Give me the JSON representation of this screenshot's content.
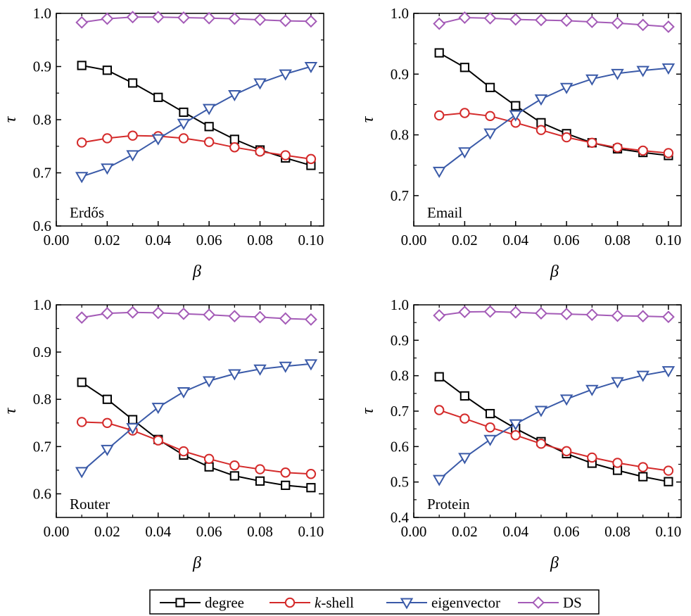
{
  "chart_data": [
    {
      "type": "line",
      "panel_label": "Erdős",
      "xlabel": "β",
      "ylabel": "τ",
      "xlim": [
        0.0,
        0.105
      ],
      "ylim": [
        0.6,
        1.0
      ],
      "xticks": [
        "0.00",
        "0.02",
        "0.04",
        "0.06",
        "0.08",
        "0.10"
      ],
      "yticks": [
        "0.6",
        "0.7",
        "0.8",
        "0.9",
        "1.0"
      ],
      "x": [
        0.01,
        0.02,
        0.03,
        0.04,
        0.05,
        0.06,
        0.07,
        0.08,
        0.09,
        0.1
      ],
      "series": [
        {
          "name": "degree",
          "values": [
            0.902,
            0.893,
            0.869,
            0.842,
            0.814,
            0.787,
            0.763,
            0.743,
            0.728,
            0.714
          ]
        },
        {
          "name": "k-shell",
          "values": [
            0.757,
            0.765,
            0.77,
            0.769,
            0.765,
            0.758,
            0.748,
            0.74,
            0.733,
            0.726
          ]
        },
        {
          "name": "eigenvector",
          "values": [
            0.693,
            0.709,
            0.734,
            0.764,
            0.793,
            0.821,
            0.847,
            0.869,
            0.886,
            0.9
          ]
        },
        {
          "name": "DS",
          "values": [
            0.983,
            0.99,
            0.993,
            0.993,
            0.992,
            0.991,
            0.99,
            0.988,
            0.986,
            0.985
          ]
        }
      ]
    },
    {
      "type": "line",
      "panel_label": "Email",
      "xlabel": "β",
      "ylabel": "τ",
      "xlim": [
        0.0,
        0.105
      ],
      "ylim": [
        0.65,
        1.0
      ],
      "xticks": [
        "0.00",
        "0.02",
        "0.04",
        "0.06",
        "0.08",
        "0.10"
      ],
      "yticks": [
        "0.7",
        "0.8",
        "0.9",
        "1.0"
      ],
      "x": [
        0.01,
        0.02,
        0.03,
        0.04,
        0.05,
        0.06,
        0.07,
        0.08,
        0.09,
        0.1
      ],
      "series": [
        {
          "name": "degree",
          "values": [
            0.935,
            0.911,
            0.878,
            0.848,
            0.82,
            0.802,
            0.787,
            0.777,
            0.771,
            0.766
          ]
        },
        {
          "name": "k-shell",
          "values": [
            0.832,
            0.836,
            0.831,
            0.82,
            0.808,
            0.796,
            0.787,
            0.779,
            0.774,
            0.77
          ]
        },
        {
          "name": "eigenvector",
          "values": [
            0.74,
            0.772,
            0.803,
            0.833,
            0.859,
            0.878,
            0.892,
            0.901,
            0.906,
            0.91
          ]
        },
        {
          "name": "DS",
          "values": [
            0.983,
            0.993,
            0.992,
            0.99,
            0.989,
            0.988,
            0.986,
            0.984,
            0.981,
            0.978
          ]
        }
      ]
    },
    {
      "type": "line",
      "panel_label": "Router",
      "xlabel": "β",
      "ylabel": "τ",
      "xlim": [
        0.0,
        0.105
      ],
      "ylim": [
        0.55,
        1.0
      ],
      "xticks": [
        "0.00",
        "0.02",
        "0.04",
        "0.06",
        "0.08",
        "0.10"
      ],
      "yticks": [
        "0.6",
        "0.7",
        "0.8",
        "0.9",
        "1.0"
      ],
      "x": [
        0.01,
        0.02,
        0.03,
        0.04,
        0.05,
        0.06,
        0.07,
        0.08,
        0.09,
        0.1
      ],
      "series": [
        {
          "name": "degree",
          "values": [
            0.836,
            0.8,
            0.757,
            0.715,
            0.682,
            0.657,
            0.638,
            0.627,
            0.618,
            0.613
          ]
        },
        {
          "name": "k-shell",
          "values": [
            0.752,
            0.75,
            0.734,
            0.713,
            0.69,
            0.674,
            0.66,
            0.652,
            0.645,
            0.642
          ]
        },
        {
          "name": "eigenvector",
          "values": [
            0.647,
            0.694,
            0.74,
            0.783,
            0.816,
            0.839,
            0.854,
            0.864,
            0.87,
            0.875
          ]
        },
        {
          "name": "DS",
          "values": [
            0.973,
            0.982,
            0.984,
            0.983,
            0.981,
            0.979,
            0.976,
            0.974,
            0.971,
            0.969
          ]
        }
      ]
    },
    {
      "type": "line",
      "panel_label": "Protein",
      "xlabel": "β",
      "ylabel": "τ",
      "xlim": [
        0.0,
        0.105
      ],
      "ylim": [
        0.4,
        1.0
      ],
      "xticks": [
        "0.00",
        "0.02",
        "0.04",
        "0.06",
        "0.08",
        "0.10"
      ],
      "yticks": [
        "0.4",
        "0.5",
        "0.6",
        "0.7",
        "0.8",
        "0.9",
        "1.0"
      ],
      "x": [
        0.01,
        0.02,
        0.03,
        0.04,
        0.05,
        0.06,
        0.07,
        0.08,
        0.09,
        0.1
      ],
      "series": [
        {
          "name": "degree",
          "values": [
            0.797,
            0.743,
            0.693,
            0.651,
            0.614,
            0.58,
            0.553,
            0.533,
            0.515,
            0.501
          ]
        },
        {
          "name": "k-shell",
          "values": [
            0.703,
            0.679,
            0.654,
            0.632,
            0.608,
            0.587,
            0.569,
            0.554,
            0.542,
            0.532
          ]
        },
        {
          "name": "eigenvector",
          "values": [
            0.507,
            0.569,
            0.62,
            0.664,
            0.702,
            0.734,
            0.761,
            0.783,
            0.801,
            0.814
          ]
        },
        {
          "name": "DS",
          "values": [
            0.97,
            0.98,
            0.981,
            0.979,
            0.976,
            0.974,
            0.972,
            0.969,
            0.968,
            0.966
          ]
        }
      ]
    }
  ],
  "legend": {
    "placement": "bottom-center",
    "entries": [
      {
        "name": "degree",
        "label_prefix": "",
        "label_main": "degree",
        "color": "#000000",
        "marker": "square"
      },
      {
        "name": "k-shell",
        "label_prefix": "k",
        "label_main": "-shell",
        "color": "#d42a2a",
        "marker": "circle"
      },
      {
        "name": "eigenvector",
        "label_prefix": "",
        "label_main": "eigenvector",
        "color": "#3a5aa8",
        "marker": "triangle-down"
      },
      {
        "name": "DS",
        "label_prefix": "",
        "label_main": "DS",
        "color": "#a45bb7",
        "marker": "diamond"
      }
    ]
  },
  "series_style": {
    "degree": {
      "color": "#000000",
      "marker": "square"
    },
    "k-shell": {
      "color": "#d42a2a",
      "marker": "circle"
    },
    "eigenvector": {
      "color": "#3a5aa8",
      "marker": "triangle-down"
    },
    "DS": {
      "color": "#a45bb7",
      "marker": "diamond"
    }
  }
}
